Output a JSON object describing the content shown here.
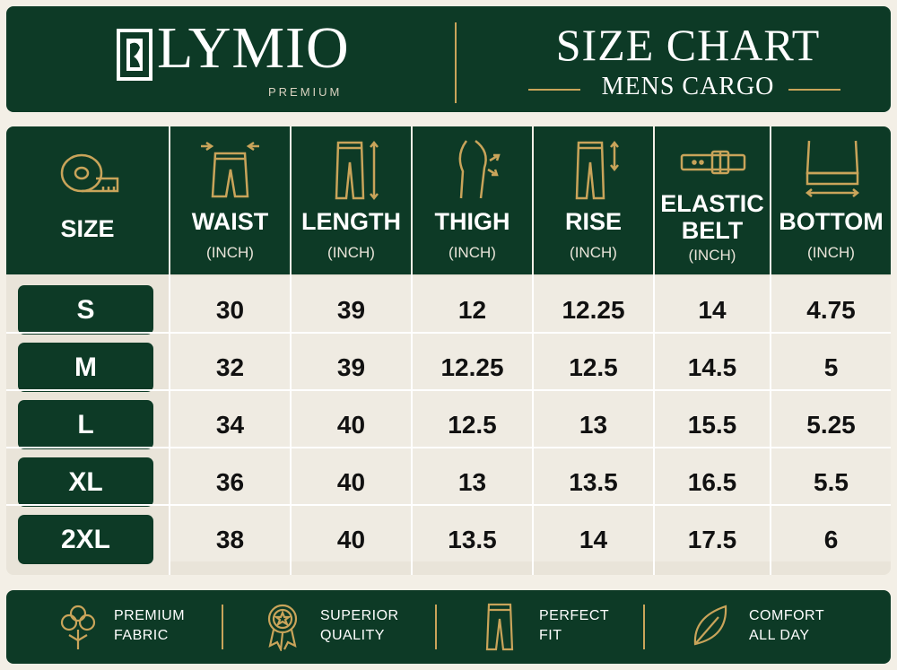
{
  "brand": {
    "name": "LYMIO",
    "tagline": "PREMIUM"
  },
  "title": {
    "main": "SIZE CHART",
    "sub": "MENS CARGO"
  },
  "columns": [
    {
      "label": "SIZE",
      "unit": "",
      "icon": "measuring-tape-icon"
    },
    {
      "label": "WAIST",
      "unit": "(INCH)",
      "icon": "waist-icon"
    },
    {
      "label": "LENGTH",
      "unit": "(INCH)",
      "icon": "length-icon"
    },
    {
      "label": "THIGH",
      "unit": "(INCH)",
      "icon": "thigh-icon"
    },
    {
      "label": "RISE",
      "unit": "(INCH)",
      "icon": "rise-icon"
    },
    {
      "label": "ELASTIC BELT",
      "unit": "(INCH)",
      "icon": "belt-icon"
    },
    {
      "label": "BOTTOM",
      "unit": "(INCH)",
      "icon": "bottom-icon"
    }
  ],
  "rows": [
    {
      "size": "S",
      "values": [
        "30",
        "39",
        "12",
        "12.25",
        "14",
        "4.75"
      ]
    },
    {
      "size": "M",
      "values": [
        "32",
        "39",
        "12.25",
        "12.5",
        "14.5",
        "5"
      ]
    },
    {
      "size": "L",
      "values": [
        "34",
        "40",
        "12.5",
        "13",
        "15.5",
        "5.25"
      ]
    },
    {
      "size": "XL",
      "values": [
        "36",
        "40",
        "13",
        "13.5",
        "16.5",
        "5.5"
      ]
    },
    {
      "size": "2XL",
      "values": [
        "38",
        "40",
        "13.5",
        "14",
        "17.5",
        "6"
      ]
    }
  ],
  "features": [
    {
      "line1": "PREMIUM",
      "line2": "FABRIC",
      "icon": "cotton-icon"
    },
    {
      "line1": "SUPERIOR",
      "line2": "QUALITY",
      "icon": "quality-badge-icon"
    },
    {
      "line1": "PERFECT",
      "line2": "FIT",
      "icon": "trousers-icon"
    },
    {
      "line1": "COMFORT",
      "line2": "ALL DAY",
      "icon": "leaf-icon"
    }
  ],
  "colors": {
    "primary": "#0d3a26",
    "accent": "#c9a45a",
    "background": "#f3efe6",
    "cell": "#efebe2"
  }
}
